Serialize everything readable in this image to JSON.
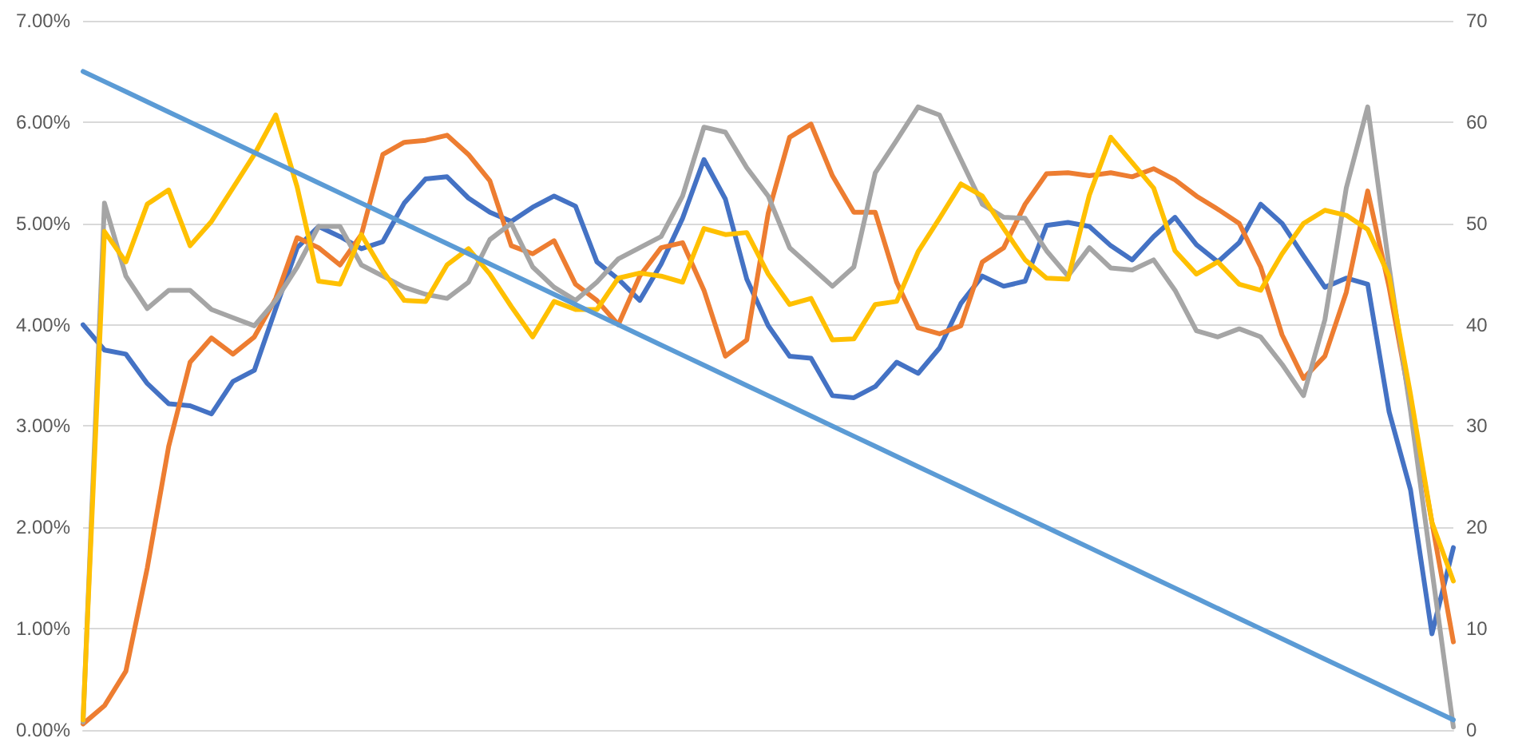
{
  "chart_data": {
    "type": "line",
    "categories": [
      null,
      null,
      null,
      null,
      null,
      null,
      null,
      null,
      null,
      null,
      null,
      null,
      null,
      null,
      null,
      null,
      null,
      null,
      null,
      null,
      null,
      null,
      null,
      null,
      null,
      null,
      null,
      null,
      null,
      null,
      null,
      null,
      null,
      null,
      null,
      null,
      null,
      null,
      null,
      null,
      null,
      null,
      null,
      null,
      null,
      null,
      null,
      null,
      null,
      null,
      null,
      null,
      null,
      null,
      null,
      null,
      null,
      null,
      null,
      null,
      null,
      null,
      null,
      null,
      null
    ],
    "series": [
      {
        "color": "#4472c4",
        "values": [
          4.0,
          3.75,
          3.71,
          3.42,
          3.22,
          3.2,
          3.12,
          3.44,
          3.55,
          4.16,
          4.76,
          4.97,
          4.87,
          4.75,
          4.82,
          5.2,
          5.44,
          5.46,
          5.25,
          5.11,
          5.02,
          5.16,
          5.27,
          5.17,
          4.62,
          4.45,
          4.24,
          4.6,
          5.05,
          5.63,
          5.24,
          4.45,
          3.99,
          3.69,
          3.67,
          3.3,
          3.28,
          3.39,
          3.63,
          3.52,
          3.77,
          4.21,
          4.48,
          4.38,
          4.43,
          4.98,
          5.01,
          4.97,
          4.78,
          4.64,
          4.87,
          5.06,
          4.79,
          4.62,
          4.81,
          5.19,
          5.0,
          4.68,
          4.37,
          4.46,
          4.4,
          3.14,
          2.37,
          0.95,
          1.8
        ]
      },
      {
        "color": "#ed7d31",
        "values": [
          0.06,
          0.24,
          0.58,
          1.6,
          2.8,
          3.63,
          3.87,
          3.71,
          3.88,
          4.26,
          4.86,
          4.76,
          4.59,
          4.89,
          5.68,
          5.8,
          5.82,
          5.87,
          5.68,
          5.42,
          4.78,
          4.7,
          4.83,
          4.4,
          4.24,
          4.0,
          4.48,
          4.76,
          4.81,
          4.34,
          3.69,
          3.85,
          5.1,
          5.85,
          5.98,
          5.47,
          5.11,
          5.11,
          4.42,
          3.97,
          3.91,
          3.99,
          4.62,
          4.76,
          5.19,
          5.49,
          5.5,
          5.47,
          5.5,
          5.46,
          5.54,
          5.43,
          5.27,
          5.14,
          5.0,
          4.57,
          3.9,
          3.47,
          3.69,
          4.32,
          5.32,
          4.37,
          3.22,
          2.05,
          0.87
        ]
      },
      {
        "color": "#a5a5a5",
        "values": [
          0.08,
          5.2,
          4.48,
          4.16,
          4.34,
          4.34,
          4.15,
          4.07,
          3.99,
          4.24,
          4.57,
          4.97,
          4.97,
          4.59,
          4.48,
          4.37,
          4.3,
          4.26,
          4.42,
          4.84,
          5.0,
          4.57,
          4.37,
          4.24,
          4.42,
          4.65,
          4.76,
          4.87,
          5.27,
          5.95,
          5.9,
          5.55,
          5.27,
          4.76,
          4.57,
          4.38,
          4.57,
          5.5,
          5.82,
          6.15,
          6.07,
          5.63,
          5.19,
          5.06,
          5.05,
          4.73,
          4.48,
          4.76,
          4.56,
          4.54,
          4.64,
          4.34,
          3.94,
          3.88,
          3.96,
          3.88,
          3.61,
          3.3,
          4.05,
          5.35,
          6.15,
          4.57,
          3.15,
          1.58,
          0.03
        ]
      },
      {
        "color": "#ffc000",
        "values": [
          0.1,
          4.92,
          4.62,
          5.19,
          5.33,
          4.78,
          5.02,
          5.35,
          5.68,
          6.07,
          5.36,
          4.43,
          4.4,
          4.89,
          4.53,
          4.24,
          4.23,
          4.59,
          4.75,
          4.5,
          4.18,
          3.88,
          4.23,
          4.15,
          4.15,
          4.46,
          4.51,
          4.48,
          4.42,
          4.95,
          4.89,
          4.91,
          4.5,
          4.2,
          4.26,
          3.85,
          3.86,
          4.2,
          4.23,
          4.72,
          5.05,
          5.39,
          5.27,
          4.95,
          4.64,
          4.46,
          4.45,
          5.28,
          5.85,
          5.6,
          5.35,
          4.73,
          4.5,
          4.62,
          4.4,
          4.34,
          4.7,
          5.0,
          5.13,
          5.08,
          4.94,
          4.48,
          3.31,
          2.05,
          1.47
        ]
      },
      {
        "color": "#5b9bd5",
        "axis": "y2",
        "values": [
          65,
          64,
          63,
          62,
          61,
          60,
          59,
          58,
          57,
          56,
          55,
          54,
          53,
          52,
          51,
          50,
          49,
          48,
          47,
          46,
          45,
          44,
          43,
          42,
          41,
          40,
          39,
          38,
          37,
          36,
          35,
          34,
          33,
          32,
          31,
          30,
          29,
          28,
          27,
          26,
          25,
          24,
          23,
          22,
          21,
          20,
          19,
          18,
          17,
          16,
          15,
          14,
          13,
          12,
          11,
          10,
          9,
          8,
          7,
          6,
          5,
          4,
          3,
          2,
          1
        ]
      }
    ],
    "ylim": [
      0,
      7
    ],
    "yticks": [
      {
        "value": 0,
        "label": "0.00%"
      },
      {
        "value": 1,
        "label": "1.00%"
      },
      {
        "value": 2,
        "label": "2.00%"
      },
      {
        "value": 3,
        "label": "3.00%"
      },
      {
        "value": 4,
        "label": "4.00%"
      },
      {
        "value": 5,
        "label": "5.00%"
      },
      {
        "value": 6,
        "label": "6.00%"
      },
      {
        "value": 7,
        "label": "7.00%"
      }
    ],
    "y2lim": [
      0,
      70
    ],
    "y2ticks": [
      0,
      10,
      20,
      30,
      40,
      50,
      60,
      70
    ],
    "grid": "y",
    "marker": "none",
    "line_style": "solid"
  }
}
